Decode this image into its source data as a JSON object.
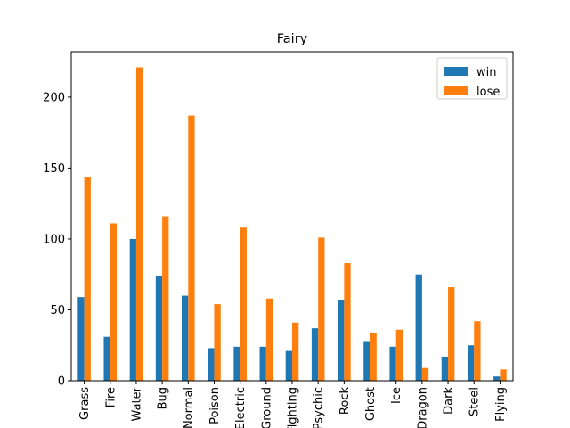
{
  "chart_data": {
    "type": "bar",
    "title": "Fairy",
    "xlabel": "",
    "ylabel": "",
    "categories": [
      "Grass",
      "Fire",
      "Water",
      "Bug",
      "Normal",
      "Poison",
      "Electric",
      "Ground",
      "Fighting",
      "Psychic",
      "Rock",
      "Ghost",
      "Ice",
      "Dragon",
      "Dark",
      "Steel",
      "Flying"
    ],
    "series": [
      {
        "name": "win",
        "color": "#1f77b4",
        "values": [
          59,
          31,
          100,
          74,
          60,
          23,
          24,
          24,
          21,
          37,
          57,
          28,
          24,
          75,
          17,
          25,
          3
        ]
      },
      {
        "name": "lose",
        "color": "#ff7f0e",
        "values": [
          144,
          111,
          221,
          116,
          187,
          54,
          108,
          58,
          41,
          101,
          83,
          34,
          36,
          9,
          66,
          42,
          8
        ]
      }
    ],
    "ylim": [
      0,
      232
    ],
    "yticks": [
      0,
      50,
      100,
      150,
      200
    ],
    "legend_position": "top-right",
    "grid": false
  }
}
